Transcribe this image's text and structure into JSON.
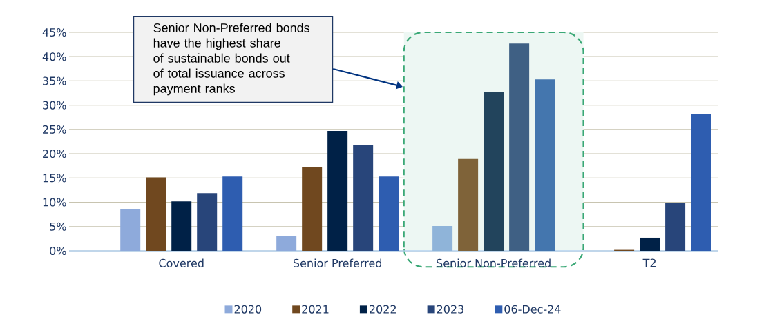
{
  "chart_data": {
    "type": "bar",
    "categories": [
      "Covered",
      "Senior Preferred",
      "Senior Non-Preferred",
      "T2"
    ],
    "series": [
      {
        "name": "2020",
        "color": "#8eaadb",
        "colors": [
          "#8eaadb",
          "#8eaadb",
          "#8fb4d9",
          "#8eaadb"
        ],
        "values": [
          8.5,
          3.1,
          5.1,
          null
        ]
      },
      {
        "name": "2021",
        "color": "#70481f",
        "colors": [
          "#70481f",
          "#70481f",
          "#7f6339",
          "#70481f"
        ],
        "values": [
          15.1,
          17.3,
          18.9,
          0.2
        ]
      },
      {
        "name": "2022",
        "color": "#002147",
        "colors": [
          "#002147",
          "#002147",
          "#22445c",
          "#002147"
        ],
        "values": [
          10.2,
          24.7,
          32.7,
          2.7
        ]
      },
      {
        "name": "2023",
        "color": "#28457a",
        "colors": [
          "#28457a",
          "#28457a",
          "#3f6084",
          "#28457a"
        ],
        "values": [
          11.9,
          21.7,
          42.7,
          9.9
        ]
      },
      {
        "name": "06-Dec-24",
        "color": "#2e5db0",
        "colors": [
          "#2e5db0",
          "#2e5db0",
          "#4476ae",
          "#2e5db0"
        ],
        "values": [
          15.3,
          15.3,
          35.3,
          28.2
        ]
      }
    ],
    "ylim": [
      0,
      45
    ],
    "yticks": [
      {
        "value": 0,
        "label": "0%"
      },
      {
        "value": 5,
        "label": "5%"
      },
      {
        "value": 10,
        "label": "10%"
      },
      {
        "value": 15,
        "label": "15%"
      },
      {
        "value": 20,
        "label": "20%"
      },
      {
        "value": 25,
        "label": "25%"
      },
      {
        "value": 30,
        "label": "30%"
      },
      {
        "value": 35,
        "label": "35%"
      },
      {
        "value": 40,
        "label": "40%"
      },
      {
        "value": 45,
        "label": "45%"
      }
    ],
    "grid": "y",
    "legend": "bottom",
    "bands": [
      {
        "axis": "x",
        "from": "Senior Non-Preferred",
        "to": "Senior Non-Preferred",
        "color": "#edf7f3"
      }
    ],
    "annotations": [
      "Senior Non-Preferred bonds have the highest share of sustainable bonds out of total issuance across payment ranks"
    ]
  }
}
